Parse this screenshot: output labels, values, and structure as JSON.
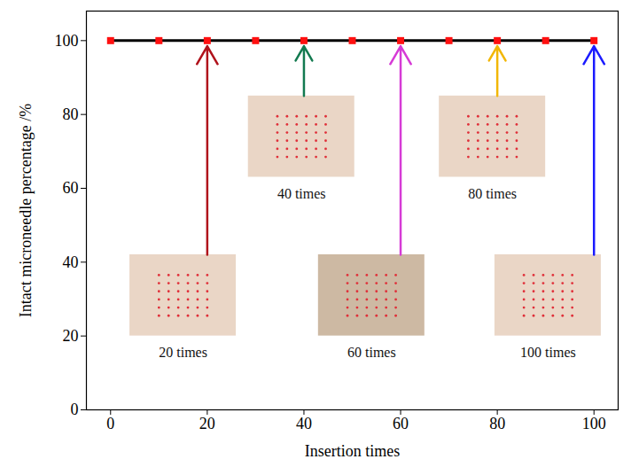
{
  "chart_data": {
    "type": "line",
    "x_label": "Insertion times",
    "y_label": "Intact microneedle percentage /%",
    "x": [
      0,
      10,
      20,
      30,
      40,
      50,
      60,
      70,
      80,
      90,
      100
    ],
    "values": [
      100,
      100,
      100,
      100,
      100,
      100,
      100,
      100,
      100,
      100,
      100
    ],
    "color": "#000000",
    "marker": "square",
    "xlim": [
      -5,
      105
    ],
    "xticks": [
      0,
      20,
      40,
      60,
      80,
      100
    ],
    "ylim": [
      0,
      108
    ],
    "yticks": [
      0,
      20,
      40,
      60,
      80,
      100
    ],
    "grid": false,
    "annotations": [
      {
        "x": 20,
        "text": "20 times",
        "color": "#b0121b"
      },
      {
        "x": 40,
        "text": "40 times",
        "color": "#137a50"
      },
      {
        "x": 60,
        "text": "60 times",
        "color": "#d63ad6"
      },
      {
        "x": 80,
        "text": "80 times",
        "color": "#f2b705"
      },
      {
        "x": 100,
        "text": "100 times",
        "color": "#1b1bff"
      }
    ]
  }
}
